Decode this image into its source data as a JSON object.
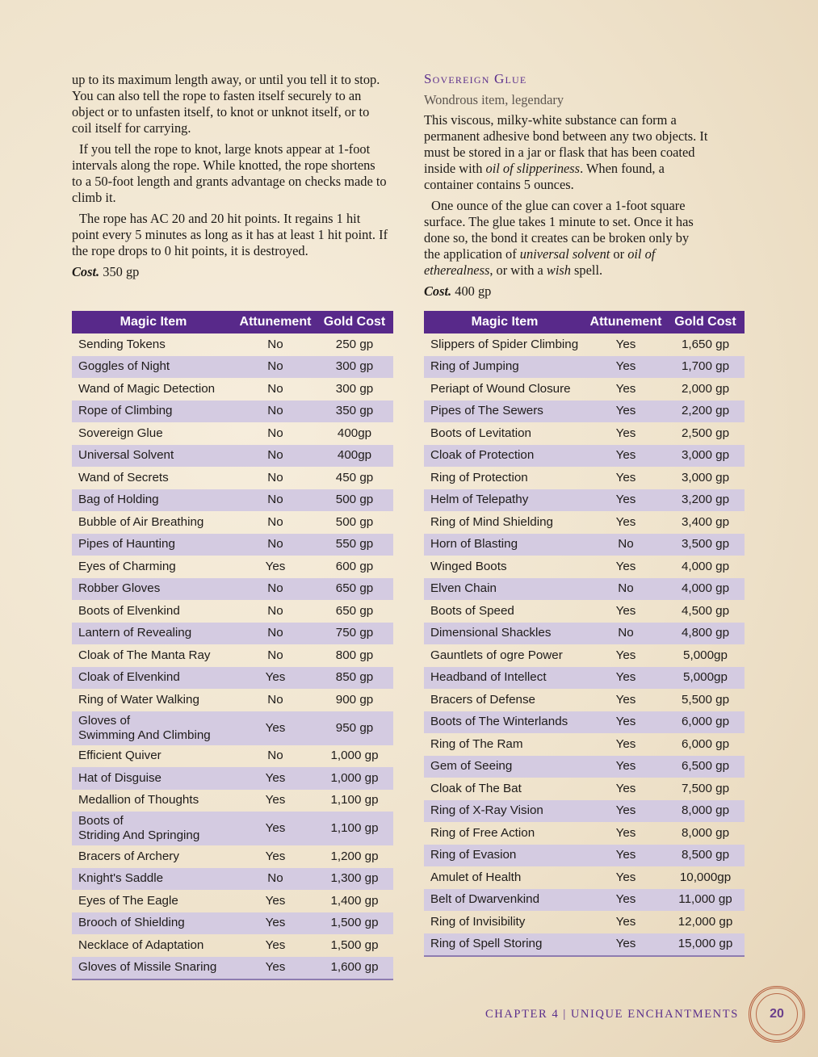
{
  "left_column": {
    "paragraphs": [
      "up to its maximum length away, or until you tell it to stop. You can also tell the rope to fasten itself securely to an object or to unfasten itself, to knot or unknot itself, or to coil itself for carrying.",
      "If you tell the rope to knot, large knots appear at 1-foot intervals along the rope. While knotted, the rope shortens to a 50-foot length and grants advantage on checks made to climb it.",
      "The rope has AC 20 and 20 hit points. It regains 1 hit point every 5 minutes as long as it has at least 1 hit point. If the rope drops to 0 hit points, it is destroyed."
    ],
    "cost_label": "Cost.",
    "cost_value": " 350 gp"
  },
  "right_column": {
    "title": "Sovereign Glue",
    "subtitle": "Wondrous item, legendary",
    "p1_a": "This viscous, milky-white substance can form a permanent adhesive bond between any two objects. It must be stored in a jar or flask that has been coated inside with ",
    "p1_i": "oil of slipperiness",
    "p1_b": ". When found, a container contains 5 ounces.",
    "p2_a": "One ounce of the glue can cover a 1-foot square surface. The glue takes 1 minute to set. Once it has done so, the bond it creates can be broken only by the application of ",
    "p2_i1": "universal solvent",
    "p2_b": " or ",
    "p2_i2": "oil of etherealness",
    "p2_c": ", or with a ",
    "p2_i3": "wish",
    "p2_d": " spell.",
    "cost_label": "Cost.",
    "cost_value": " 400 gp"
  },
  "table_headers": [
    "Magic Item",
    "Attunement",
    "Gold Cost"
  ],
  "table_left": [
    [
      "Sending Tokens",
      "No",
      "250 gp"
    ],
    [
      "Goggles of Night",
      "No",
      "300 gp"
    ],
    [
      "Wand of Magic Detection",
      "No",
      "300 gp"
    ],
    [
      "Rope of Climbing",
      "No",
      "350 gp"
    ],
    [
      "Sovereign Glue",
      "No",
      "400gp"
    ],
    [
      "Universal Solvent",
      "No",
      "400gp"
    ],
    [
      "Wand of Secrets",
      "No",
      "450 gp"
    ],
    [
      "Bag of Holding",
      "No",
      "500 gp"
    ],
    [
      "Bubble of Air Breathing",
      "No",
      "500 gp"
    ],
    [
      "Pipes of Haunting",
      "No",
      "550 gp"
    ],
    [
      "Eyes of Charming",
      "Yes",
      "600 gp"
    ],
    [
      "Robber Gloves",
      "No",
      "650 gp"
    ],
    [
      "Boots of Elvenkind",
      "No",
      "650 gp"
    ],
    [
      "Lantern of Revealing",
      "No",
      "750 gp"
    ],
    [
      "Cloak of The Manta Ray",
      "No",
      "800 gp"
    ],
    [
      "Cloak of Elvenkind",
      "Yes",
      "850 gp"
    ],
    [
      "Ring of Water Walking",
      "No",
      "900 gp"
    ],
    [
      "Gloves of\nSwimming And Climbing",
      "Yes",
      "950 gp"
    ],
    [
      "Efficient Quiver",
      "No",
      "1,000 gp"
    ],
    [
      "Hat of Disguise",
      "Yes",
      "1,000 gp"
    ],
    [
      "Medallion of Thoughts",
      "Yes",
      "1,100 gp"
    ],
    [
      "Boots of\nStriding And Springing",
      "Yes",
      "1,100 gp"
    ],
    [
      "Bracers of Archery",
      "Yes",
      "1,200 gp"
    ],
    [
      "Knight's Saddle",
      "No",
      "1,300 gp"
    ],
    [
      "Eyes of The Eagle",
      "Yes",
      "1,400 gp"
    ],
    [
      "Brooch of Shielding",
      "Yes",
      "1,500 gp"
    ],
    [
      "Necklace of Adaptation",
      "Yes",
      "1,500 gp"
    ],
    [
      "Gloves of Missile Snaring",
      "Yes",
      "1,600 gp"
    ]
  ],
  "table_right": [
    [
      "Slippers of Spider Climbing",
      "Yes",
      "1,650 gp"
    ],
    [
      "Ring of Jumping",
      "Yes",
      "1,700 gp"
    ],
    [
      "Periapt of Wound Closure",
      "Yes",
      "2,000 gp"
    ],
    [
      "Pipes of The Sewers",
      "Yes",
      "2,200 gp"
    ],
    [
      "Boots of Levitation",
      "Yes",
      "2,500 gp"
    ],
    [
      "Cloak of Protection",
      "Yes",
      "3,000 gp"
    ],
    [
      "Ring of Protection",
      "Yes",
      "3,000 gp"
    ],
    [
      "Helm of Telepathy",
      "Yes",
      "3,200 gp"
    ],
    [
      "Ring of Mind Shielding",
      "Yes",
      "3,400 gp"
    ],
    [
      "Horn of Blasting",
      "No",
      "3,500 gp"
    ],
    [
      "Winged Boots",
      "Yes",
      "4,000 gp"
    ],
    [
      "Elven Chain",
      "No",
      "4,000 gp"
    ],
    [
      "Boots of Speed",
      "Yes",
      "4,500 gp"
    ],
    [
      "Dimensional Shackles",
      "No",
      "4,800 gp"
    ],
    [
      "Gauntlets of ogre Power",
      "Yes",
      "5,000gp"
    ],
    [
      "Headband of Intellect",
      "Yes",
      "5,000gp"
    ],
    [
      "Bracers of Defense",
      "Yes",
      "5,500 gp"
    ],
    [
      "Boots of The Winterlands",
      "Yes",
      "6,000 gp"
    ],
    [
      "Ring of The Ram",
      "Yes",
      "6,000 gp"
    ],
    [
      "Gem of Seeing",
      "Yes",
      "6,500 gp"
    ],
    [
      "Cloak of The Bat",
      "Yes",
      "7,500 gp"
    ],
    [
      "Ring of X-Ray Vision",
      "Yes",
      "8,000 gp"
    ],
    [
      "Ring of Free Action",
      "Yes",
      "8,000 gp"
    ],
    [
      "Ring of Evasion",
      "Yes",
      "8,500 gp"
    ],
    [
      "Amulet of Health",
      "Yes",
      "10,000gp"
    ],
    [
      "Belt of Dwarvenkind",
      "Yes",
      "11,000 gp"
    ],
    [
      "Ring of Invisibility",
      "Yes",
      "12,000 gp"
    ],
    [
      "Ring of Spell Storing",
      "Yes",
      "15,000 gp"
    ]
  ],
  "footer": {
    "chapter": "CHAPTER 4",
    "separator": "|",
    "section": "UNIQUE ENCHANTMENTS",
    "page_number": "20"
  },
  "colors": {
    "header_purple": "#58298a",
    "row_alt": "#d4cbe1",
    "title_purple": "#5b2f8c",
    "seal": "#b5603f"
  }
}
